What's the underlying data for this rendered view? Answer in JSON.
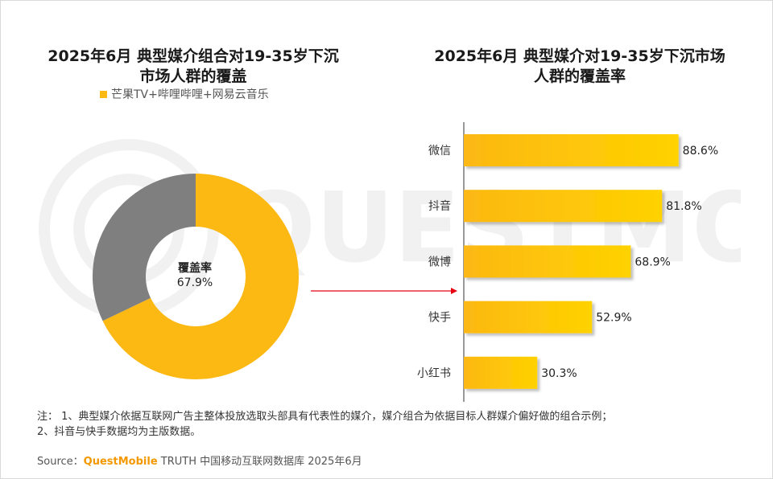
{
  "left_title_line1": "2025年6月 典型媒介组合对19-35岁下沉",
  "left_title_line2": "市场人群的覆盖",
  "right_title_line1": "2025年6月 典型媒介对19-35岁下沉市场",
  "right_title_line2": "人群的覆盖率",
  "watermark": "QUESTMOBILE",
  "colors": {
    "donut_primary": "#fcb813",
    "donut_remainder": "#7f7f7f",
    "bar_start": "#fcb813",
    "bar_end": "#ffd200",
    "arrow": "#e60012"
  },
  "notes": {
    "line1": "注：  1、典型媒介依据互联网广告主整体投放选取头部具有代表性的媒介，媒介组合为依据目标人群媒介偏好做的组合示例；",
    "line2": "2、抖音与快手数据均为主版数据。"
  },
  "source": {
    "prefix": "Source：",
    "brand": "QuestMobile",
    "rest": " TRUTH 中国移动互联网数据库 2025年6月"
  },
  "chart_data": [
    {
      "type": "pie",
      "subtype": "donut",
      "legend": [
        "芒果TV+哔哩哔哩+网易云音乐"
      ],
      "values": [
        67.9,
        32.1
      ],
      "center_label": "覆盖率",
      "center_value": "67.9%"
    },
    {
      "type": "bar",
      "orientation": "horizontal",
      "categories": [
        "微信",
        "抖音",
        "微博",
        "快手",
        "小红书"
      ],
      "values": [
        88.6,
        81.8,
        68.9,
        52.9,
        30.3
      ],
      "value_labels": [
        "88.6%",
        "81.8%",
        "68.9%",
        "52.9%",
        "30.3%"
      ],
      "xlim": [
        0,
        100
      ]
    }
  ]
}
